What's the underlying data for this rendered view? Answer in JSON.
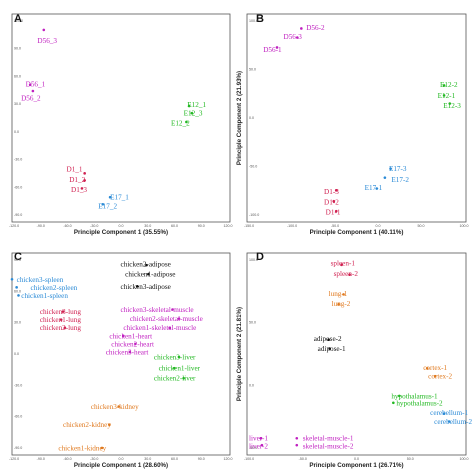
{
  "chart_data": [
    {
      "type": "scatter",
      "panel": "A",
      "xlabel": "Principle Component 1 (35.55%)",
      "ylabel": "",
      "xticks": [
        "-120.0",
        "-90.0",
        "-60.0",
        "-30.0",
        "0.0",
        "30.0",
        "60.0",
        "90.0",
        "120.0"
      ],
      "yticks": [
        "120.0",
        "90.0",
        "60.0",
        "30.0",
        "0.0",
        "-30.0",
        "-60.0",
        "-90.0"
      ],
      "xlim": [
        -120,
        120
      ],
      "ylim": [
        -100,
        135
      ],
      "grid": false,
      "points": [
        {
          "label": "D56_3",
          "x": -85,
          "y": 117,
          "color": "#c020c0",
          "lx": -92,
          "ly": 105
        },
        {
          "label": "D56_1",
          "x": -100,
          "y": 55,
          "color": "#c020c0",
          "lx": -105,
          "ly": 56
        },
        {
          "label": "D56_2",
          "x": -97,
          "y": 48,
          "color": "#c020c0",
          "lx": -110,
          "ly": 40
        },
        {
          "label": "E12_1",
          "x": 75,
          "y": 31,
          "color": "#22b822",
          "lx": 73,
          "ly": 33
        },
        {
          "label": "E12_3",
          "x": 78,
          "y": 23,
          "color": "#22b822",
          "lx": 69,
          "ly": 23
        },
        {
          "label": "E12_2",
          "x": 72,
          "y": 13,
          "color": "#22b822",
          "lx": 55,
          "ly": 12
        },
        {
          "label": "D1_1",
          "x": -40,
          "y": -45,
          "color": "#d02050",
          "lx": -60,
          "ly": -40
        },
        {
          "label": "D1_2",
          "x": -40,
          "y": -53,
          "color": "#d02050",
          "lx": -57,
          "ly": -52
        },
        {
          "label": "D1_3",
          "x": -43,
          "y": -62,
          "color": "#d02050",
          "lx": -55,
          "ly": -63
        },
        {
          "label": "E17_1",
          "x": -12,
          "y": -72,
          "color": "#2a8ad6",
          "lx": -12,
          "ly": -72
        },
        {
          "label": "E17_2",
          "x": -20,
          "y": -80,
          "color": "#2a8ad6",
          "lx": -25,
          "ly": -82
        }
      ]
    },
    {
      "type": "scatter",
      "panel": "B",
      "xlabel": "Principle Component 1 (40.11%)",
      "ylabel": "Principle Component 2 (21.93%)",
      "xticks": [
        "-150.0",
        "-100.0",
        "-50.0",
        "0.0",
        "50.0",
        "100.0"
      ],
      "yticks": [
        "100.0",
        "50.0",
        "0.0",
        "-50.0",
        "-100.0"
      ],
      "xlim": [
        -155,
        115
      ],
      "ylim": [
        -115,
        115
      ],
      "grid": false,
      "points": [
        {
          "label": "D56-2",
          "x": -88,
          "y": 99,
          "color": "#c020c0",
          "lx": -82,
          "ly": 100
        },
        {
          "label": "D56-3",
          "x": -93,
          "y": 89,
          "color": "#c020c0",
          "lx": -110,
          "ly": 90
        },
        {
          "label": "D56-1",
          "x": -118,
          "y": 78,
          "color": "#c020c0",
          "lx": -135,
          "ly": 76
        },
        {
          "label": "E12-2",
          "x": 88,
          "y": 36,
          "color": "#22b822",
          "lx": 83,
          "ly": 37
        },
        {
          "label": "E12-1",
          "x": 88,
          "y": 25,
          "color": "#22b822",
          "lx": 80,
          "ly": 25
        },
        {
          "label": "E12-3",
          "x": 95,
          "y": 16,
          "color": "#22b822",
          "lx": 87,
          "ly": 14
        },
        {
          "label": "E17-3",
          "x": 22,
          "y": -56,
          "color": "#2a8ad6",
          "lx": 20,
          "ly": -56
        },
        {
          "label": "E17-2",
          "x": 15,
          "y": -66,
          "color": "#2a8ad6",
          "lx": 23,
          "ly": -68
        },
        {
          "label": "E17-1",
          "x": 5,
          "y": -78,
          "color": "#2a8ad6",
          "lx": -10,
          "ly": -77
        },
        {
          "label": "D1-3",
          "x": -45,
          "y": -80,
          "color": "#d02050",
          "lx": -60,
          "ly": -81
        },
        {
          "label": "D1-2",
          "x": -48,
          "y": -92,
          "color": "#d02050",
          "lx": -60,
          "ly": -93
        },
        {
          "label": "D1-1",
          "x": -45,
          "y": -103,
          "color": "#d02050",
          "lx": -58,
          "ly": -104
        }
      ]
    },
    {
      "type": "scatter",
      "panel": "C",
      "xlabel": "Principle Component 1 (28.60%)",
      "ylabel": "",
      "xticks": [
        "-120.0",
        "-90.0",
        "-60.0",
        "-30.0",
        "0.0",
        "30.0",
        "60.0",
        "90.0",
        "120.0"
      ],
      "yticks": [
        "90.0",
        "60.0",
        "30.0",
        "0.0",
        "-30.0",
        "-60.0",
        "-90.0"
      ],
      "xlim": [
        -125,
        110
      ],
      "ylim": [
        -100,
        100
      ],
      "grid": false,
      "points": [
        {
          "label": "chicken2-adipose",
          "x": 20,
          "y": 88,
          "color": "#111111",
          "lx": -8,
          "ly": 89
        },
        {
          "label": "chicken1-adipose",
          "x": 22,
          "y": 79,
          "color": "#111111",
          "lx": -3,
          "ly": 79
        },
        {
          "label": "chicken3-adipose",
          "x": 10,
          "y": 67,
          "color": "#111111",
          "lx": -8,
          "ly": 67
        },
        {
          "label": "chicken3-spleen",
          "x": -125,
          "y": 74,
          "color": "#2a8ad6",
          "lx": -120,
          "ly": 74
        },
        {
          "label": "chicken2-spleen",
          "x": -120,
          "y": 66,
          "color": "#2a8ad6",
          "lx": -105,
          "ly": 66
        },
        {
          "label": "chicken1-spleen",
          "x": -118,
          "y": 58,
          "color": "#2a8ad6",
          "lx": -115,
          "ly": 58
        },
        {
          "label": "chicken3-lung",
          "x": -70,
          "y": 42,
          "color": "#d02050",
          "lx": -95,
          "ly": 42
        },
        {
          "label": "chicken1-lung",
          "x": -72,
          "y": 34,
          "color": "#d02050",
          "lx": -95,
          "ly": 34
        },
        {
          "label": "chicken2-lung",
          "x": -68,
          "y": 26,
          "color": "#d02050",
          "lx": -95,
          "ly": 26
        },
        {
          "label": "chicken3-skeletal-muscle",
          "x": 48,
          "y": 44,
          "color": "#c020c0",
          "lx": -8,
          "ly": 44
        },
        {
          "label": "chicken2-skeletal-muscle",
          "x": 55,
          "y": 35,
          "color": "#c020c0",
          "lx": 2,
          "ly": 35
        },
        {
          "label": "chicken1-skeletal-muscle",
          "x": 45,
          "y": 26,
          "color": "#c020c0",
          "lx": -5,
          "ly": 26
        },
        {
          "label": "chicken1-heart",
          "x": -5,
          "y": 18,
          "color": "#c020c0",
          "lx": -20,
          "ly": 18
        },
        {
          "label": "chicken2-heart",
          "x": 8,
          "y": 10,
          "color": "#c020c0",
          "lx": -18,
          "ly": 10
        },
        {
          "label": "chicken3-heart",
          "x": 2,
          "y": 2,
          "color": "#c020c0",
          "lx": -24,
          "ly": 2
        },
        {
          "label": "chicken3-liver",
          "x": 55,
          "y": -3,
          "color": "#22b822",
          "lx": 28,
          "ly": -3
        },
        {
          "label": "chicken1-liver",
          "x": 50,
          "y": -14,
          "color": "#22b822",
          "lx": 33,
          "ly": -14
        },
        {
          "label": "chicken2-liver",
          "x": 60,
          "y": -24,
          "color": "#22b822",
          "lx": 28,
          "ly": -24
        },
        {
          "label": "chicken3-kidney",
          "x": -10,
          "y": -52,
          "color": "#e07a20",
          "lx": -40,
          "ly": -52
        },
        {
          "label": "chicken2-kidney",
          "x": -20,
          "y": -70,
          "color": "#e07a20",
          "lx": -70,
          "ly": -70
        },
        {
          "label": "chicken1-kidney",
          "x": -28,
          "y": -93,
          "color": "#e07a20",
          "lx": -75,
          "ly": -93
        }
      ]
    },
    {
      "type": "scatter",
      "panel": "D",
      "xlabel": "Principle Component 1 (26.71%)",
      "ylabel": "Principle Component 2 (21.81%)",
      "xticks": [
        "-100.0",
        "-50.0",
        "0.0",
        "50.0",
        "100.0"
      ],
      "yticks": [
        "100.0",
        "50.0",
        "0.0",
        "-50.0"
      ],
      "xlim": [
        -105,
        115
      ],
      "ylim": [
        -75,
        130
      ],
      "grid": false,
      "points": [
        {
          "label": "spleen-1",
          "x": -10,
          "y": 118,
          "color": "#d02050",
          "lx": -21,
          "ly": 120
        },
        {
          "label": "spleen-2",
          "x": -2,
          "y": 108,
          "color": "#d02050",
          "lx": -18,
          "ly": 109
        },
        {
          "label": "lung-1",
          "x": -8,
          "y": 88,
          "color": "#e07a20",
          "lx": -23,
          "ly": 89
        },
        {
          "label": "lung-2",
          "x": -13,
          "y": 78,
          "color": "#e07a20",
          "lx": -20,
          "ly": 79
        },
        {
          "label": "adipose-2",
          "x": -23,
          "y": 42,
          "color": "#111111",
          "lx": -38,
          "ly": 43
        },
        {
          "label": "adipose-1",
          "x": -22,
          "y": 33,
          "color": "#111111",
          "lx": -34,
          "ly": 33
        },
        {
          "label": "cortex-1",
          "x": 76,
          "y": 13,
          "color": "#e07a20",
          "lx": 72,
          "ly": 14
        },
        {
          "label": "cortex-2",
          "x": 84,
          "y": 5,
          "color": "#e07a20",
          "lx": 77,
          "ly": 5
        },
        {
          "label": "hypothalamus-1",
          "x": 48,
          "y": -15,
          "color": "#22b822",
          "lx": 40,
          "ly": -15
        },
        {
          "label": "hypothalamus-2",
          "x": 42,
          "y": -22,
          "color": "#22b822",
          "lx": 45,
          "ly": -22
        },
        {
          "label": "cerebellum-1",
          "x": 93,
          "y": -33,
          "color": "#2a8ad6",
          "lx": 79,
          "ly": -32
        },
        {
          "label": "cerebellum-2",
          "x": 98,
          "y": -41,
          "color": "#2a8ad6",
          "lx": 83,
          "ly": -41
        },
        {
          "label": "skeletal-muscle-1",
          "x": -55,
          "y": -58,
          "color": "#c020c0",
          "lx": -49,
          "ly": -58
        },
        {
          "label": "skeletal-muscle-2",
          "x": -55,
          "y": -65,
          "color": "#c020c0",
          "lx": -49,
          "ly": -66
        },
        {
          "label": "liver-1",
          "x": -91,
          "y": -58,
          "color": "#c020c0",
          "lx": -103,
          "ly": -58
        },
        {
          "label": "liver-2",
          "x": -90,
          "y": -65,
          "color": "#c020c0",
          "lx": -103,
          "ly": -66
        }
      ]
    }
  ]
}
